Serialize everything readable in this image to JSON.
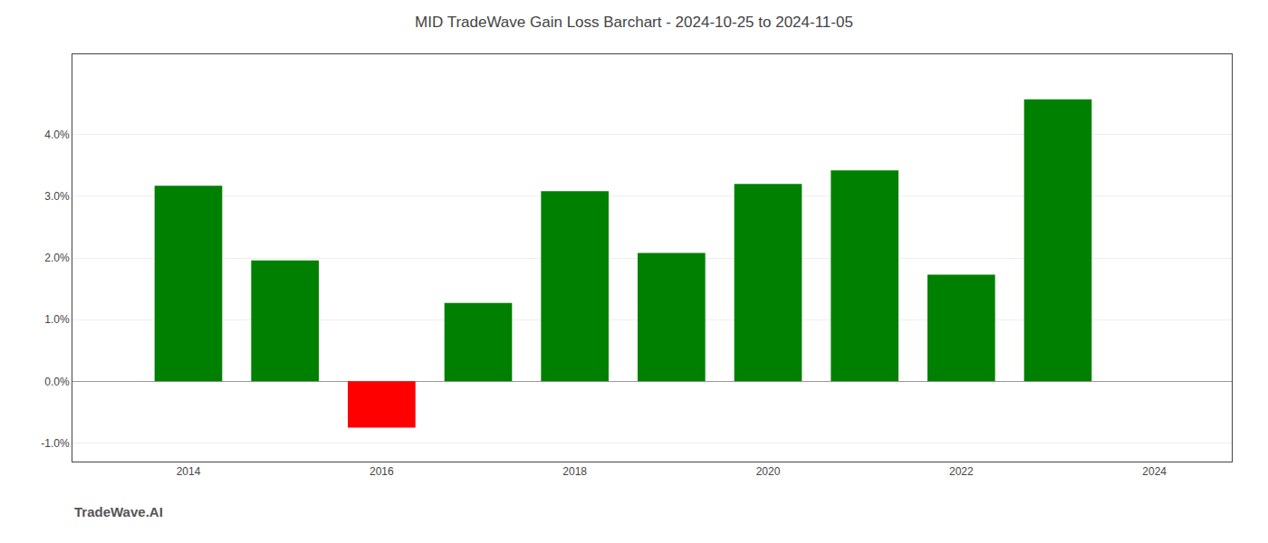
{
  "chart_data": {
    "type": "bar",
    "title": "MID TradeWave Gain Loss Barchart - 2024-10-25 to 2024-11-05",
    "annotations": [
      "TradeWave.AI"
    ],
    "x": [
      2014,
      2015,
      2016,
      2017,
      2018,
      2019,
      2020,
      2021,
      2022,
      2023
    ],
    "values": [
      0.0317,
      0.0196,
      -0.0075,
      0.0127,
      0.0308,
      0.0208,
      0.032,
      0.0342,
      0.0173,
      0.0457
    ],
    "colors": [
      "#008000",
      "#008000",
      "#ff0000",
      "#008000",
      "#008000",
      "#008000",
      "#008000",
      "#008000",
      "#008000",
      "#008000"
    ],
    "xlim": [
      2012.8,
      2024.8
    ],
    "xticks": [
      2014,
      2016,
      2018,
      2020,
      2022,
      2024
    ],
    "ylim": [
      -0.013,
      0.053
    ],
    "yticks": [
      {
        "value": -0.01,
        "label": "-1.0%"
      },
      {
        "value": 0.0,
        "label": "0.0%"
      },
      {
        "value": 0.01,
        "label": "1.0%"
      },
      {
        "value": 0.02,
        "label": "2.0%"
      },
      {
        "value": 0.03,
        "label": "3.0%"
      },
      {
        "value": 0.04,
        "label": "4.0%"
      }
    ],
    "grid": true
  }
}
